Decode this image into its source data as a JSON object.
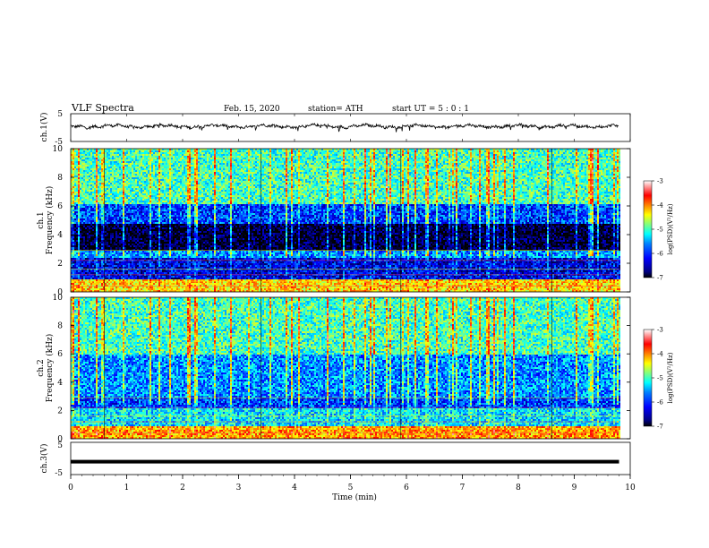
{
  "header": {
    "title": "VLF  Spectra",
    "date": "Feb. 15, 2020",
    "station": "station= ATH",
    "start_ut": "start  UT  =   5  : 0   : 1"
  },
  "chart_data": {
    "type": "heatmap",
    "xlabel": "Time  (min)",
    "x_ticks": [
      "0",
      "1",
      "2",
      "3",
      "4",
      "5",
      "6",
      "7",
      "8",
      "9",
      "10"
    ],
    "xlim": [
      0,
      10
    ],
    "data_end_min": 9.8,
    "panels": [
      {
        "id": "ch1-waveform",
        "type": "line",
        "ylabel": "ch.1(V)",
        "y_ticks": [
          "5",
          "-5"
        ],
        "ylim": [
          -5,
          5
        ],
        "approx_level_v": 0.5,
        "color": "#000000"
      },
      {
        "id": "ch1-spectrogram",
        "type": "heatmap",
        "ylabel_line1": "ch.1",
        "ylabel_line2": "Frequency  (kHz)",
        "y_ticks": [
          "0",
          "2",
          "4",
          "6",
          "8",
          "10"
        ],
        "ylim": [
          0,
          10
        ],
        "colorbar": {
          "label": "log(PSD)(V²/Hz)",
          "ticks": [
            "-3",
            "-4",
            "-5",
            "-6",
            "-7"
          ],
          "range": [
            -7,
            -3
          ]
        },
        "bands_khz": [
          {
            "from": 0.0,
            "to": 1.0,
            "level": -4.2
          },
          {
            "from": 1.0,
            "to": 2.4,
            "level": -6.2
          },
          {
            "from": 2.4,
            "to": 3.0,
            "level": -5.6
          },
          {
            "from": 3.0,
            "to": 4.8,
            "level": -6.8
          },
          {
            "from": 4.8,
            "to": 6.2,
            "level": -5.9
          },
          {
            "from": 6.2,
            "to": 10.0,
            "level": -5.0
          }
        ]
      },
      {
        "id": "ch2-spectrogram",
        "type": "heatmap",
        "ylabel_line1": "ch.2",
        "ylabel_line2": "Frequency  (kHz)",
        "y_ticks": [
          "0",
          "2",
          "4",
          "6",
          "8",
          "10"
        ],
        "ylim": [
          0,
          10
        ],
        "colorbar": {
          "label": "log(PSD)(V²/Hz)",
          "ticks": [
            "-3",
            "-4",
            "-5",
            "-6",
            "-7"
          ],
          "range": [
            -7,
            -3
          ]
        },
        "bands_khz": [
          {
            "from": 0.0,
            "to": 1.0,
            "level": -4.0
          },
          {
            "from": 1.0,
            "to": 2.2,
            "level": -5.3
          },
          {
            "from": 2.2,
            "to": 3.0,
            "level": -5.9
          },
          {
            "from": 3.0,
            "to": 6.0,
            "level": -5.6
          },
          {
            "from": 6.0,
            "to": 10.0,
            "level": -5.0
          }
        ]
      },
      {
        "id": "ch3-waveform",
        "type": "line",
        "ylabel": "ch.3(V)",
        "y_ticks": [
          "5",
          "-5"
        ],
        "ylim": [
          -5,
          5
        ],
        "approx_level_v": -1.0,
        "color": "#000000"
      }
    ]
  },
  "colors": {
    "colormap": [
      "#000080",
      "#0000ff",
      "#0080ff",
      "#00ffff",
      "#80ff80",
      "#ffff00",
      "#ff8000",
      "#ff0000",
      "#ffffff"
    ]
  }
}
